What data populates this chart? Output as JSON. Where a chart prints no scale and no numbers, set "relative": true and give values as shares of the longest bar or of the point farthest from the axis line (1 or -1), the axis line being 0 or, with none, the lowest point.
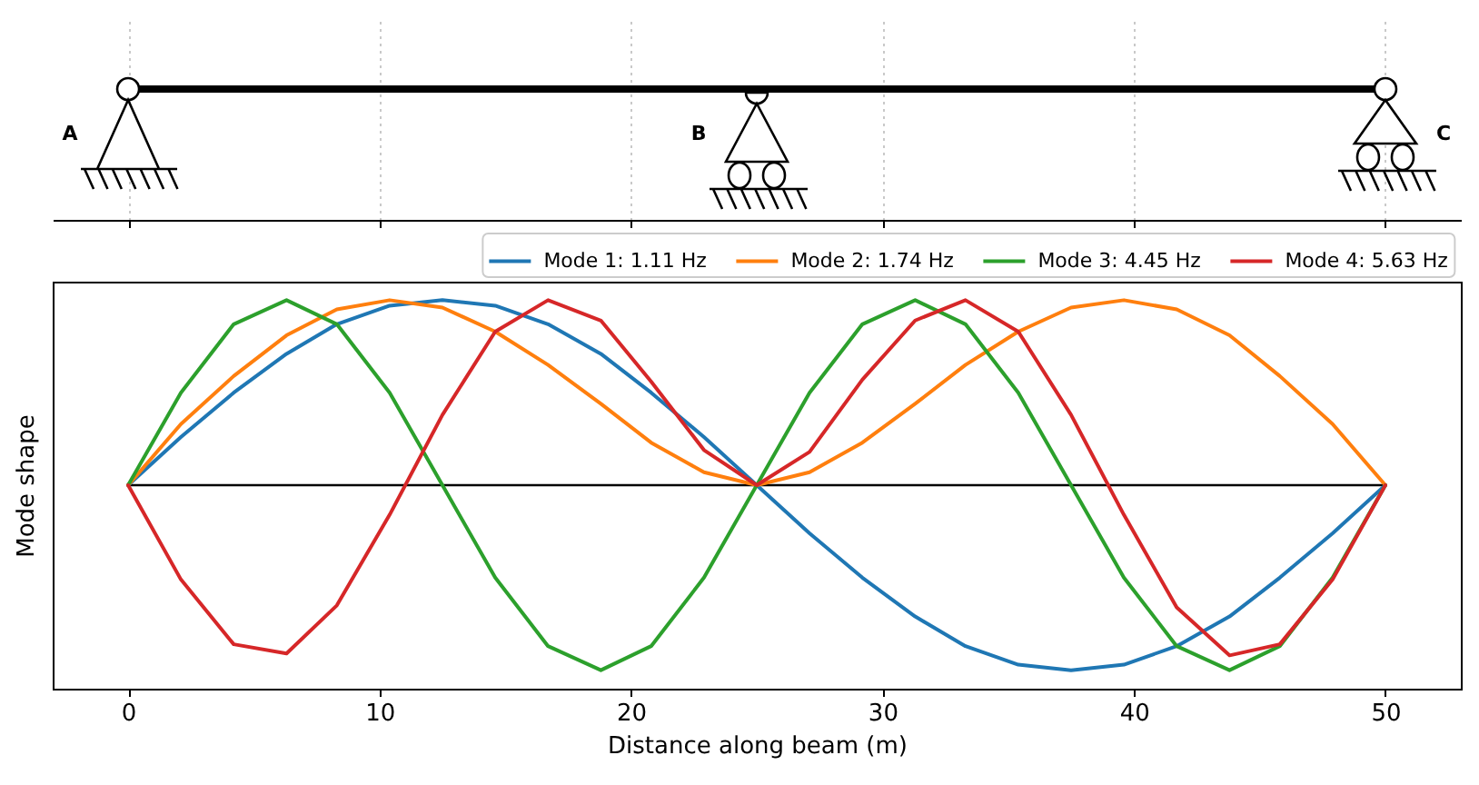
{
  "chart_data": {
    "type": "line",
    "xlabel": "Distance along beam (m)",
    "ylabel": "Mode shape",
    "relative": true,
    "xlim": [
      -3,
      53
    ],
    "xticks": [
      0,
      10,
      20,
      30,
      40,
      50
    ],
    "tick_labels": "x",
    "legend": "top right",
    "annotations": [
      "A",
      "B",
      "C"
    ],
    "x": [
      0,
      2.1,
      4.2,
      6.3,
      8.3,
      10.4,
      12.5,
      14.6,
      16.7,
      18.8,
      20.8,
      22.9,
      25,
      27.1,
      29.2,
      31.3,
      33.3,
      35.4,
      37.5,
      39.6,
      41.7,
      43.8,
      45.8,
      47.9,
      50
    ],
    "series": [
      {
        "color": "#000000",
        "x": [
          0,
          50
        ],
        "values": [
          0,
          0
        ]
      },
      {
        "name": "Mode 1: 1.11 Hz",
        "color": "#1f77b4",
        "values": [
          0,
          0.26,
          0.5,
          0.71,
          0.87,
          0.97,
          1,
          0.97,
          0.87,
          0.71,
          0.5,
          0.26,
          0,
          -0.26,
          -0.5,
          -0.71,
          -0.87,
          -0.97,
          -1,
          -0.97,
          -0.87,
          -0.71,
          -0.5,
          -0.26,
          0
        ]
      },
      {
        "name": "Mode 2: 1.74 Hz",
        "color": "#ff7f0e",
        "values": [
          0,
          0.33,
          0.59,
          0.81,
          0.95,
          1,
          0.96,
          0.83,
          0.65,
          0.44,
          0.23,
          0.07,
          0,
          0.07,
          0.23,
          0.44,
          0.65,
          0.83,
          0.96,
          1,
          0.95,
          0.81,
          0.59,
          0.33,
          0
        ]
      },
      {
        "name": "Mode 3: 4.45 Hz",
        "color": "#2ca02c",
        "values": [
          0,
          0.5,
          0.87,
          1,
          0.87,
          0.5,
          0,
          -0.5,
          -0.87,
          -1,
          -0.87,
          -0.5,
          0,
          0.5,
          0.87,
          1,
          0.87,
          0.5,
          0,
          -0.5,
          -0.87,
          -1,
          -0.87,
          -0.5,
          0
        ]
      },
      {
        "name": "Mode 4: 5.63 Hz",
        "color": "#d62728",
        "values": [
          0,
          -0.51,
          -0.86,
          -0.91,
          -0.65,
          -0.16,
          0.38,
          0.83,
          1,
          0.89,
          0.56,
          0.19,
          0,
          0.18,
          0.57,
          0.89,
          1,
          0.83,
          0.38,
          -0.16,
          -0.66,
          -0.92,
          -0.86,
          -0.51,
          0
        ]
      }
    ]
  }
}
